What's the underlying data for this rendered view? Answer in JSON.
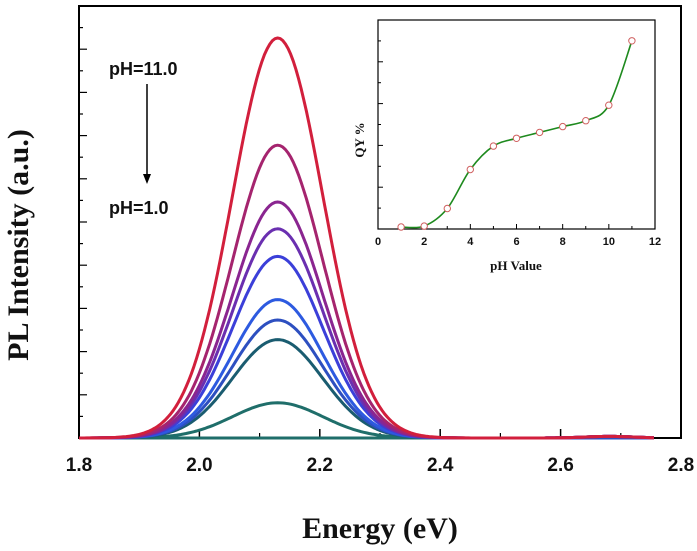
{
  "chart_data": [
    {
      "type": "line",
      "title": "",
      "xlabel": "Energy (eV)",
      "ylabel": "PL Intensity (a.u.)",
      "xlim": [
        1.8,
        2.8
      ],
      "ylim": [
        0,
        1.0
      ],
      "y_ticks_labeled": false,
      "x_ticks": [
        1.8,
        2.0,
        2.2,
        2.4,
        2.6,
        2.8
      ],
      "x_tick_labels": [
        "1.8",
        "2.0",
        "2.2",
        "2.4",
        "2.6",
        "2.8"
      ],
      "peak_center": 2.13,
      "peak_width": 0.075,
      "x_end": 2.755,
      "annotations": [
        {
          "text": "pH=11.0"
        },
        {
          "text": "pH=1.0"
        }
      ],
      "series": [
        {
          "peak": 0.0,
          "color": "#1f6e6a"
        },
        {
          "peak": 0.088,
          "color": "#1f6e6a"
        },
        {
          "peak": 0.246,
          "color": "#1a5c70"
        },
        {
          "peak": 0.295,
          "color": "#2d4fc0"
        },
        {
          "peak": 0.346,
          "color": "#2d5ae0"
        },
        {
          "peak": 0.454,
          "color": "#3b3fd9"
        },
        {
          "peak": 0.523,
          "color": "#6a2fb0"
        },
        {
          "peak": 0.59,
          "color": "#8a2590"
        },
        {
          "peak": 0.732,
          "color": "#a5246e"
        },
        {
          "peak": 1.0,
          "color": "#d21f3c"
        }
      ]
    },
    {
      "type": "line",
      "title": "",
      "xlabel": "pH Value",
      "ylabel": "QY %",
      "xlim": [
        0,
        12
      ],
      "ylim": [
        0,
        1.0
      ],
      "y_ticks_labeled": false,
      "x_ticks": [
        0,
        2,
        4,
        6,
        8,
        10,
        12
      ],
      "x_tick_labels": [
        "0",
        "2",
        "4",
        "6",
        "8",
        "10",
        "12"
      ],
      "line_color": "#1e8a1e",
      "marker_color": "#d06060",
      "x": [
        1,
        2,
        3,
        4,
        5,
        6,
        7,
        8,
        9,
        10,
        11
      ],
      "y": [
        0.005,
        0.01,
        0.1,
        0.3,
        0.42,
        0.46,
        0.49,
        0.52,
        0.55,
        0.63,
        0.96
      ]
    }
  ]
}
